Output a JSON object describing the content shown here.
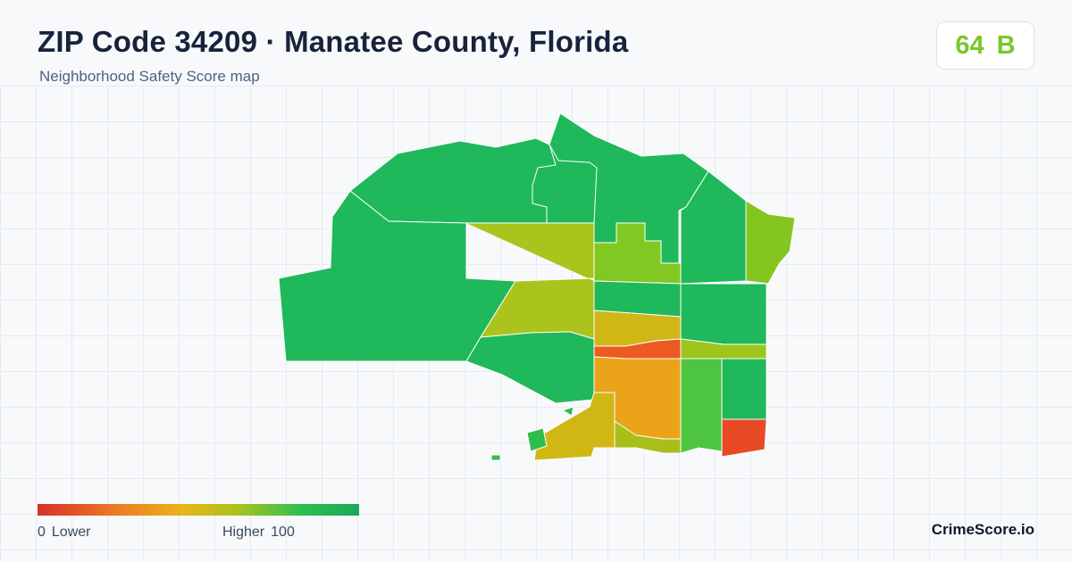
{
  "header": {
    "title": "ZIP Code 34209 · Manatee County, Florida",
    "subtitle": "Neighborhood Safety Score map"
  },
  "score_badge": {
    "score": "64",
    "grade": "B",
    "color": "#7ac72b"
  },
  "legend": {
    "min": "0",
    "min_label": "Lower",
    "max_label": "Higher",
    "max": "100",
    "low_color": "#d7302b",
    "high_color": "#1aa85a"
  },
  "brand": "CrimeScore.io",
  "map": {
    "region_colors": {
      "west-large": "#1fb85a",
      "north-band": "#1fb85a",
      "north-central-small": "#1fb85a",
      "center-yellow-green": "#abc31d",
      "center-lime": "#82c822",
      "center-green-block": "#1fb85a",
      "center-south-green": "#1fb85a",
      "northeast-green": "#1fb85a",
      "far-east-lime": "#84c61f",
      "amber-band": "#d0b716",
      "red-band": "#ec5a21",
      "orange-core": "#eba31a",
      "south-yellow-left": "#d1b714",
      "south-lime-right": "#a9be18",
      "east-mid-green": "#1fb85a",
      "east-lime-strip": "#9ec51c",
      "east-bright-green": "#4ec540",
      "east-south-green": "#1fb85a",
      "southeast-red": "#e84a25",
      "south-islands": "#2ebe4c"
    }
  }
}
